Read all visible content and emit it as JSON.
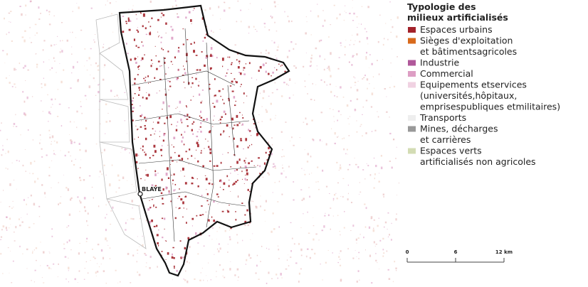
{
  "map": {
    "place_label": "BLAYE",
    "legend": {
      "title": [
        "Typologie des",
        "milieux artificialisés"
      ],
      "items": [
        {
          "lines": [
            "Espaces urbains"
          ],
          "color": "#a3222a"
        },
        {
          "lines": [
            "Sièges d'exploitation",
            "et bâtimentsagricoles"
          ],
          "color": "#d86a1c"
        },
        {
          "lines": [
            "Industrie"
          ],
          "color": "#b0589a"
        },
        {
          "lines": [
            "Commercial"
          ],
          "color": "#dd9ec4"
        },
        {
          "lines": [
            "Equipements etservices",
            "(universités,hôpitaux,",
            "emprisespubliques etmilitaires)"
          ],
          "color": "#f0d2e2"
        },
        {
          "lines": [
            "Transports"
          ],
          "color": "#eeeeee"
        },
        {
          "lines": [
            "Mines, décharges",
            "et carrières"
          ],
          "color": "#999999"
        },
        {
          "lines": [
            "Espaces verts",
            "artificialisés non agricoles"
          ],
          "color": "#d3dcb4"
        }
      ]
    },
    "scale_bar": {
      "ticks": [
        0,
        6,
        {
          "value": 12,
          "label": "12 km"
        }
      ]
    }
  }
}
